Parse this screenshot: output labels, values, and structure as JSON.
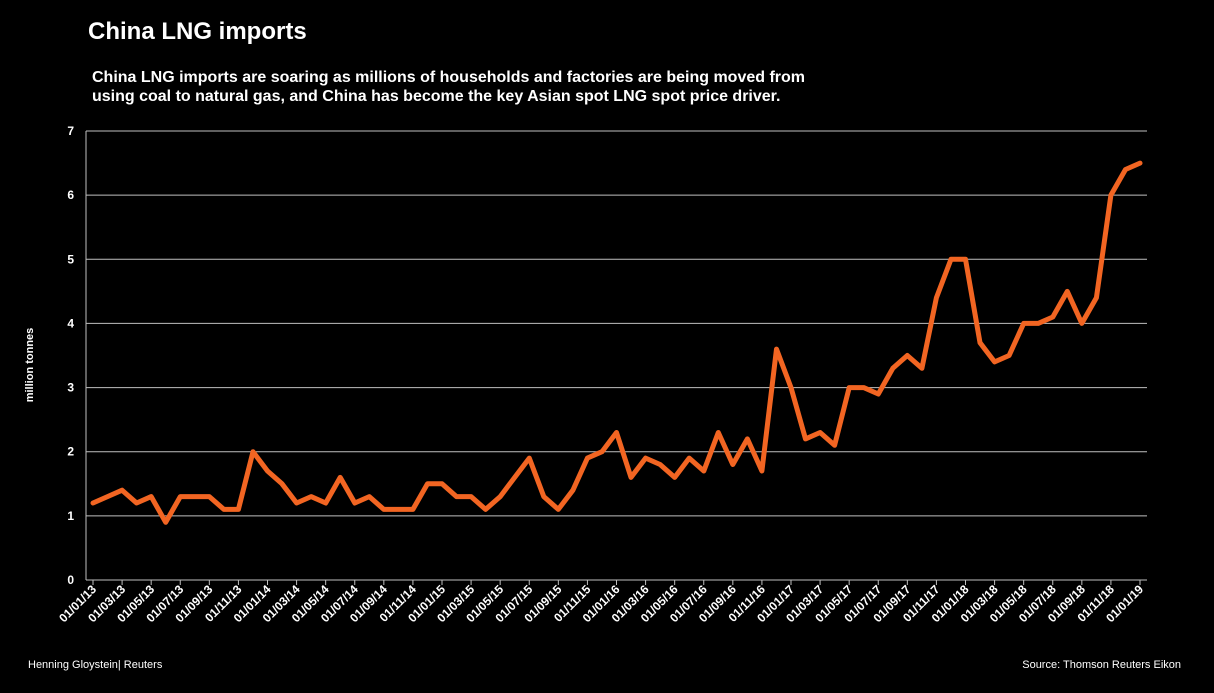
{
  "page": {
    "title": "China LNG imports",
    "subtitle": "China LNG imports are soaring as millions of households and factories are being moved from using coal to natural gas, and China has become the key Asian spot LNG spot price driver.",
    "footer_left": "Henning Gloystein| Reuters",
    "footer_right": "Source: Thomson Reuters Eikon"
  },
  "chart_data": {
    "type": "line",
    "title": "China LNG imports",
    "ylabel": "million tonnes",
    "xlabel": "",
    "ylim": [
      0,
      7
    ],
    "yticks": [
      0,
      1,
      2,
      3,
      4,
      5,
      6,
      7
    ],
    "grid": true,
    "line_color": "#f26522",
    "x_tick_labels": [
      "01/01/13",
      "01/03/13",
      "01/05/13",
      "01/07/13",
      "01/09/13",
      "01/11/13",
      "01/01/14",
      "01/03/14",
      "01/05/14",
      "01/07/14",
      "01/09/14",
      "01/11/14",
      "01/01/15",
      "01/03/15",
      "01/05/15",
      "01/07/15",
      "01/09/15",
      "01/11/15",
      "01/01/16",
      "01/03/16",
      "01/05/16",
      "01/07/16",
      "01/09/16",
      "01/11/16",
      "01/01/17",
      "01/03/17",
      "01/05/17",
      "01/07/17",
      "01/09/17",
      "01/11/17",
      "01/01/18",
      "01/03/18",
      "01/05/18",
      "01/07/18",
      "01/09/18",
      "01/11/18",
      "01/01/19"
    ],
    "series": [
      {
        "values": [
          1.2,
          1.3,
          1.4,
          1.2,
          1.3,
          0.9,
          1.3,
          1.3,
          1.3,
          1.1,
          1.1,
          2.0,
          1.7,
          1.5,
          1.2,
          1.3,
          1.2,
          1.6,
          1.2,
          1.3,
          1.1,
          1.1,
          1.1,
          1.5,
          1.5,
          1.3,
          1.3,
          1.1,
          1.3,
          1.6,
          1.9,
          1.3,
          1.1,
          1.4,
          1.9,
          2.0,
          2.3,
          1.6,
          1.9,
          1.8,
          1.6,
          1.9,
          1.7,
          2.3,
          1.8,
          2.2,
          1.7,
          3.6,
          3.0,
          2.2,
          2.3,
          2.1,
          3.0,
          3.0,
          2.9,
          3.3,
          3.5,
          3.3,
          4.4,
          5.0,
          5.0,
          3.7,
          3.4,
          3.5,
          4.0,
          4.0,
          4.1,
          4.5,
          4.0,
          4.4,
          6.0,
          6.4,
          6.5
        ]
      }
    ]
  }
}
